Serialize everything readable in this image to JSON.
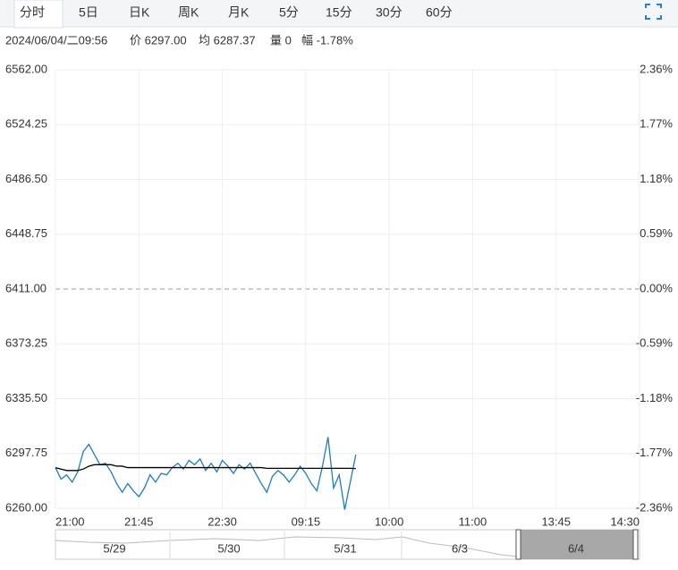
{
  "tabs": [
    "分时",
    "5日",
    "日K",
    "周K",
    "月K",
    "5分",
    "15分",
    "30分",
    "60分"
  ],
  "info": {
    "datetime": "2024/06/04/二09:56",
    "price": "价 6297.00",
    "average": "均 6287.37",
    "volume": "量 0",
    "change": "幅 -1.78%"
  },
  "navigator": {
    "labels": [
      "5/29",
      "5/30",
      "5/31",
      "6/3",
      "6/4"
    ]
  },
  "chart_data": {
    "type": "line",
    "x": [
      0,
      3,
      6,
      9,
      12,
      15,
      18,
      21,
      24,
      27,
      30,
      33,
      36,
      39,
      42,
      45,
      48,
      51,
      54,
      57,
      60,
      63,
      66,
      69,
      72,
      75,
      78,
      81,
      84,
      87,
      90,
      93,
      96,
      99,
      102,
      105,
      108,
      111,
      114,
      117,
      120,
      123,
      126,
      129,
      132,
      135,
      138,
      141,
      144,
      147,
      150,
      153,
      156,
      159,
      162
    ],
    "xlim": [
      0,
      315
    ],
    "xticks": [
      {
        "value": 0,
        "label": "21:00"
      },
      {
        "value": 45,
        "label": "21:45"
      },
      {
        "value": 90,
        "label": "22:30"
      },
      {
        "value": 135,
        "label": "09:15"
      },
      {
        "value": 180,
        "label": "10:00"
      },
      {
        "value": 225,
        "label": "11:00"
      },
      {
        "value": 270,
        "label": "13:45"
      },
      {
        "value": 315,
        "label": "14:30"
      }
    ],
    "ylim": [
      6260,
      6562
    ],
    "yticks": [
      {
        "value": 6562,
        "label": "6562.00"
      },
      {
        "value": 6524.25,
        "label": "6524.25"
      },
      {
        "value": 6486.5,
        "label": "6486.50"
      },
      {
        "value": 6448.75,
        "label": "6448.75"
      },
      {
        "value": 6411,
        "label": "6411.00"
      },
      {
        "value": 6373.25,
        "label": "6373.25"
      },
      {
        "value": 6335.5,
        "label": "6335.50"
      },
      {
        "value": 6297.75,
        "label": "6297.75"
      },
      {
        "value": 6260,
        "label": "6260.00"
      }
    ],
    "y2lim": [
      -2.36,
      2.36
    ],
    "y2ticks": [
      {
        "value": 2.36,
        "label": "2.36%"
      },
      {
        "value": 1.77,
        "label": "1.77%"
      },
      {
        "value": 1.18,
        "label": "1.18%"
      },
      {
        "value": 0.59,
        "label": "0.59%"
      },
      {
        "value": 0,
        "label": "0.00%"
      },
      {
        "value": -0.59,
        "label": "-0.59%"
      },
      {
        "value": -1.18,
        "label": "-1.18%"
      },
      {
        "value": -1.77,
        "label": "-1.77%"
      },
      {
        "value": -2.36,
        "label": "-2.36%"
      }
    ],
    "up_color": "#e02020",
    "down_color": "#1a9a1a",
    "flat_color": "#333333",
    "grid": true,
    "series": [
      {
        "color": "#1a7fc1",
        "values": [
          6288,
          6280,
          6283,
          6278,
          6285,
          6299,
          6304,
          6297,
          6290,
          6291,
          6285,
          6277,
          6271,
          6277,
          6272,
          6268,
          6274,
          6283,
          6278,
          6284,
          6283,
          6288,
          6291,
          6287,
          6293,
          6290,
          6294,
          6286,
          6291,
          6285,
          6293,
          6289,
          6284,
          6290,
          6287,
          6291,
          6284,
          6277,
          6271,
          6282,
          6286,
          6283,
          6278,
          6283,
          6289,
          6284,
          6277,
          6272,
          6289,
          6309,
          6274,
          6283,
          6259,
          6278,
          6297
        ]
      },
      {
        "color": "#000000",
        "values": [
          6288,
          6287,
          6286,
          6286,
          6286,
          6287,
          6289,
          6290,
          6290,
          6290,
          6290,
          6289,
          6289,
          6288,
          6288,
          6288,
          6288,
          6288,
          6288,
          6288,
          6288,
          6288,
          6288,
          6288,
          6288,
          6288,
          6288,
          6288,
          6288,
          6288,
          6288,
          6288,
          6288,
          6288,
          6288,
          6288,
          6288,
          6288,
          6287.5,
          6287.5,
          6287.5,
          6287.5,
          6287.5,
          6287.5,
          6287.5,
          6287.5,
          6287.5,
          6287.5,
          6287.5,
          6287.5,
          6287.5,
          6287.5,
          6287.5,
          6287.5,
          6287.37
        ]
      }
    ]
  }
}
